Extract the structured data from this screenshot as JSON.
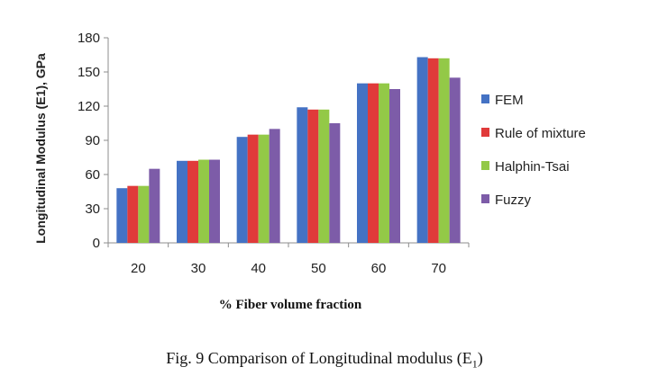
{
  "chart_data": {
    "type": "bar",
    "title": "",
    "xlabel": "% Fiber volume fraction",
    "ylabel": "Longitudinal Modulus (E1), GPa",
    "categories": [
      "20",
      "30",
      "40",
      "50",
      "60",
      "70"
    ],
    "ylim": [
      0,
      180
    ],
    "yticks": [
      0,
      30,
      60,
      90,
      120,
      150,
      180
    ],
    "grid": false,
    "legend_position": "right",
    "series": [
      {
        "name": "FEM",
        "color": "#4472C4",
        "values": [
          48,
          72,
          93,
          119,
          140,
          163
        ]
      },
      {
        "name": "Rule of mixture",
        "color": "#E03A3A",
        "values": [
          50,
          72,
          95,
          117,
          140,
          162
        ]
      },
      {
        "name": "Halphin-Tsai",
        "color": "#93C947",
        "values": [
          50,
          73,
          95,
          117,
          140,
          162
        ]
      },
      {
        "name": "Fuzzy",
        "color": "#7D5CA8",
        "values": [
          65,
          73,
          100,
          105,
          135,
          145
        ]
      }
    ]
  },
  "caption": {
    "text": "Fig. 9 Comparison of Longitudinal modulus (E",
    "subscript": "1",
    "close": ")"
  }
}
